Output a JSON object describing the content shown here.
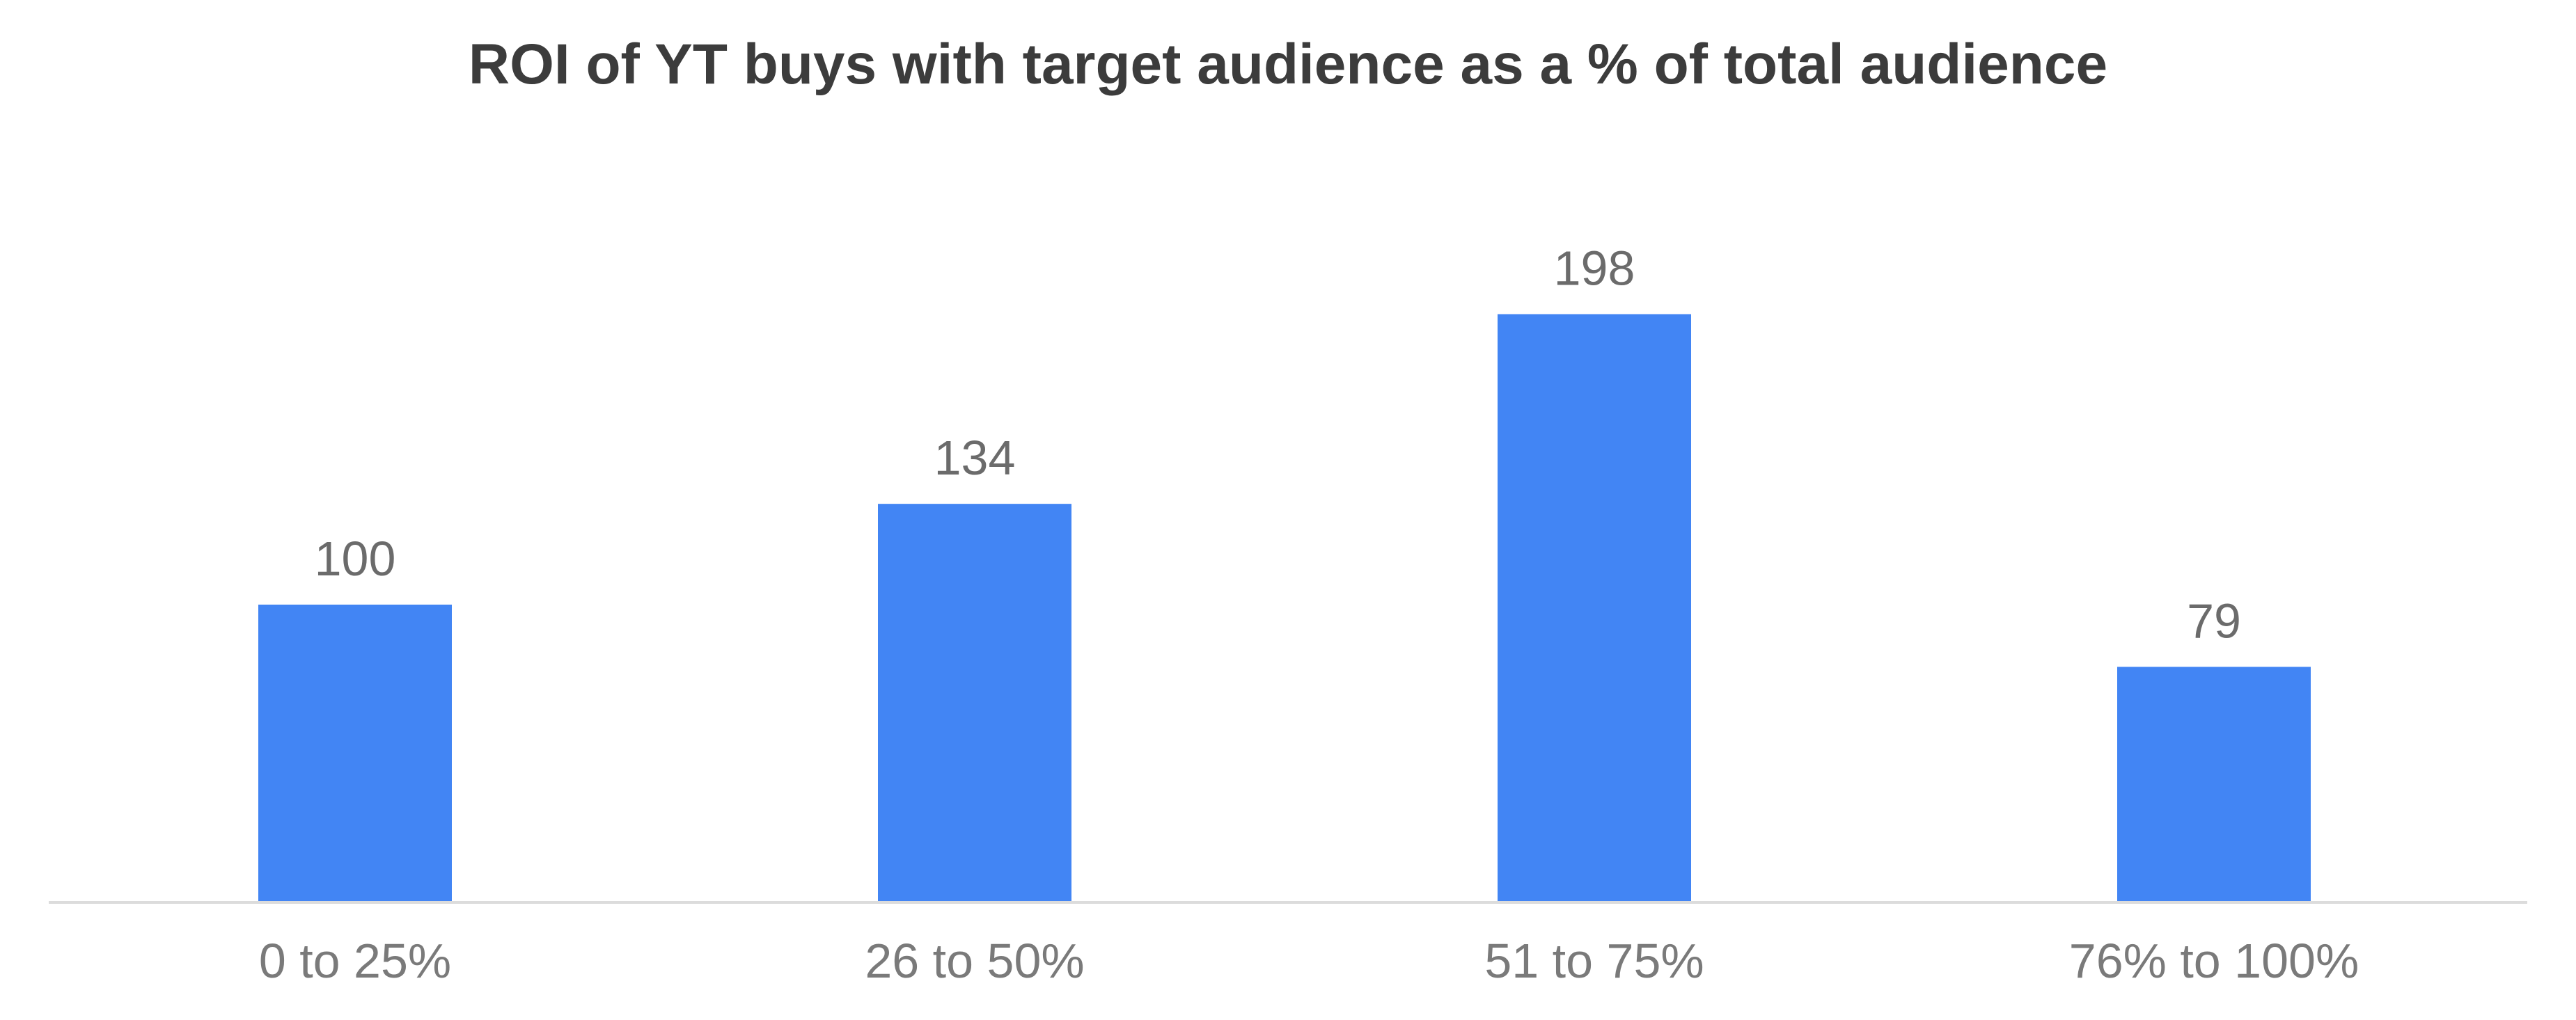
{
  "chart_data": {
    "type": "bar",
    "title": "ROI of YT buys with target audience as a % of total audience",
    "categories": [
      "0 to 25%",
      "26 to 50%",
      "51 to 75%",
      "76% to 100%"
    ],
    "values": [
      100,
      134,
      198,
      79
    ],
    "data_labels": [
      "100",
      "134",
      "198",
      "79"
    ],
    "xlabel": "",
    "ylabel": "",
    "ylim": [
      0,
      220
    ],
    "grid": false,
    "legend": "none",
    "colors": {
      "bar": "#4285f4",
      "axis": "#dcdcdc"
    }
  }
}
